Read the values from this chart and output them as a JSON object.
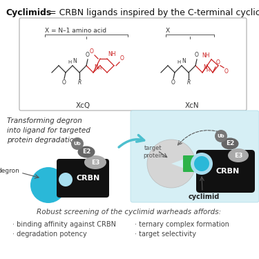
{
  "title_bold": "Cyclimids",
  "title_rest": " = CRBN ligands inspired by the C-terminal cyclic imide degron",
  "subtitle": "Robust screening of the cyclimid warheads affords:",
  "bullet_left_1": "· binding affinity against CRBN",
  "bullet_left_2": "· degradation potency",
  "bullet_right_1": "· ternary complex formation",
  "bullet_right_2": "· target selectivity",
  "arrow_text": "Transforming degron\ninto ligand for targeted\nprotein degradation",
  "xcq_label": "XcQ",
  "xcn_label": "XcN",
  "x_label_left": "X = N–1 amino acid",
  "x_label_right": "X",
  "degron_label": "degron",
  "e2_label": "E2",
  "e3_label": "E3",
  "ub_label": "Ub",
  "crbn_label": "CRBN",
  "target_protein_label": "target\nprotein",
  "cyclimid_label": "cyclimid",
  "bg_color": "#ffffff",
  "box_color": "#d6eff5",
  "crbn_color": "#111111",
  "degron_color": "#2ab8d8",
  "e2_color": "#666666",
  "e3_color": "#999999",
  "ub_color": "#777777",
  "target_protein_color": "#cccccc",
  "cyclimid_color": "#2ab8d8",
  "green_color": "#2db34a",
  "arrow_color": "#4dbfce",
  "black_color": "#111111",
  "red_color": "#cc2222",
  "gray_dark": "#555555",
  "gray_mid": "#888888",
  "gray_light": "#aaaaaa"
}
